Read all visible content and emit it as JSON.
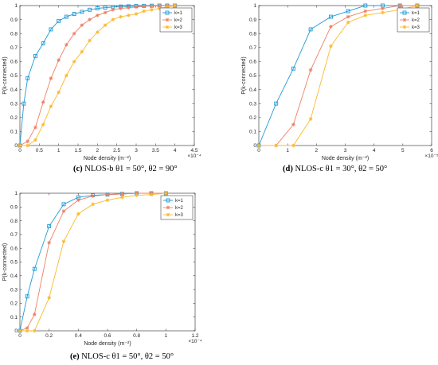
{
  "captions": [
    {
      "label": "(c)",
      "text": "NLOS-b θ1 = 50°, θ2 = 90°"
    },
    {
      "label": "(d)",
      "text": "NLOS-c θ1 = 30°, θ2 = 50°"
    },
    {
      "label": "(e)",
      "text": "NLOS-c θ1 = 50°, θ2 = 50°"
    }
  ],
  "colors": {
    "k1": "#1f9bd6",
    "k2": "#f07f63",
    "k3": "#fbb92b"
  },
  "chart_data": [
    {
      "type": "line",
      "xlabel": "Node density (m⁻²)",
      "ylabel": "P(k-connected)",
      "x_exponent": "×10⁻⁴",
      "xlim": [
        0,
        4.5
      ],
      "ylim": [
        0,
        1
      ],
      "xticks": [
        "0",
        "0.5",
        "1",
        "1.5",
        "2",
        "2.5",
        "3",
        "3.5",
        "4",
        "4.5"
      ],
      "yticks": [
        "0",
        "0.1",
        "0.2",
        "0.3",
        "0.4",
        "0.5",
        "0.6",
        "0.7",
        "0.8",
        "0.9",
        "1"
      ],
      "legend_position": "top-right",
      "series": [
        {
          "name": "k=1",
          "color": "#1f9bd6",
          "marker": "square",
          "x": [
            0,
            0.1,
            0.2,
            0.4,
            0.6,
            0.8,
            1.0,
            1.2,
            1.4,
            1.6,
            1.8,
            2.0,
            2.2,
            2.4,
            2.6,
            2.8,
            3.0,
            3.2,
            3.4,
            3.6,
            3.8,
            4.0
          ],
          "y": [
            0,
            0.3,
            0.48,
            0.64,
            0.73,
            0.83,
            0.89,
            0.92,
            0.94,
            0.955,
            0.97,
            0.98,
            0.985,
            0.99,
            0.993,
            0.995,
            0.997,
            0.998,
            0.999,
            1,
            1,
            1
          ]
        },
        {
          "name": "k=2",
          "color": "#f07f63",
          "marker": "star",
          "x": [
            0,
            0.2,
            0.4,
            0.6,
            0.8,
            1.0,
            1.2,
            1.4,
            1.6,
            1.8,
            2.0,
            2.2,
            2.4,
            2.6,
            2.8,
            3.0,
            3.2,
            3.4,
            3.6,
            3.8,
            4.0
          ],
          "y": [
            0,
            0.03,
            0.13,
            0.31,
            0.48,
            0.61,
            0.72,
            0.8,
            0.86,
            0.9,
            0.93,
            0.95,
            0.97,
            0.98,
            0.985,
            0.99,
            0.995,
            0.997,
            0.998,
            0.999,
            1
          ]
        },
        {
          "name": "k=3",
          "color": "#fbb92b",
          "marker": "star",
          "x": [
            0,
            0.2,
            0.4,
            0.6,
            0.8,
            1.0,
            1.2,
            1.4,
            1.6,
            1.8,
            2.0,
            2.2,
            2.4,
            2.6,
            2.8,
            3.0,
            3.2,
            3.4,
            3.6,
            3.8,
            4.0
          ],
          "y": [
            0,
            0,
            0.04,
            0.15,
            0.28,
            0.38,
            0.5,
            0.6,
            0.67,
            0.75,
            0.81,
            0.86,
            0.9,
            0.92,
            0.93,
            0.94,
            0.96,
            0.97,
            0.98,
            0.99,
            1
          ]
        }
      ]
    },
    {
      "type": "line",
      "xlabel": "Node density (m⁻²)",
      "ylabel": "P(k-connected)",
      "x_exponent": "×10⁻⁵",
      "xlim": [
        0,
        6
      ],
      "ylim": [
        0,
        1
      ],
      "xticks": [
        "0",
        "1",
        "2",
        "3",
        "4",
        "5",
        "6"
      ],
      "yticks": [
        "0",
        "0.1",
        "0.2",
        "0.3",
        "0.4",
        "0.5",
        "0.6",
        "0.7",
        "0.8",
        "0.9",
        "1"
      ],
      "legend_position": "top-right",
      "series": [
        {
          "name": "k=1",
          "color": "#1f9bd6",
          "marker": "square",
          "x": [
            0,
            0.6,
            1.2,
            1.8,
            2.5,
            3.1,
            3.7,
            4.3,
            4.9,
            5.5
          ],
          "y": [
            0,
            0.3,
            0.55,
            0.83,
            0.92,
            0.96,
            1,
            1,
            1,
            1
          ]
        },
        {
          "name": "k=2",
          "color": "#f07f63",
          "marker": "star",
          "x": [
            0,
            0.6,
            1.2,
            1.8,
            2.5,
            3.1,
            3.7,
            4.3,
            4.9,
            5.5
          ],
          "y": [
            0,
            0,
            0.15,
            0.54,
            0.85,
            0.92,
            0.96,
            0.98,
            1,
            1
          ]
        },
        {
          "name": "k=3",
          "color": "#fbb92b",
          "marker": "star",
          "x": [
            0,
            0.6,
            1.2,
            1.8,
            2.5,
            3.1,
            3.7,
            4.3,
            4.9,
            5.5
          ],
          "y": [
            0,
            0,
            0,
            0.19,
            0.71,
            0.88,
            0.93,
            0.95,
            0.97,
            1
          ]
        }
      ]
    },
    {
      "type": "line",
      "xlabel": "Node density (m⁻²)",
      "ylabel": "P(k-connected)",
      "x_exponent": "×10⁻⁴",
      "xlim": [
        0,
        1.2
      ],
      "ylim": [
        0,
        1
      ],
      "xticks": [
        "0",
        "0.2",
        "0.4",
        "0.6",
        "0.8",
        "1",
        "1.2"
      ],
      "yticks": [
        "0",
        "0.1",
        "0.2",
        "0.3",
        "0.4",
        "0.5",
        "0.6",
        "0.7",
        "0.8",
        "0.9",
        "1"
      ],
      "legend_position": "top-right",
      "series": [
        {
          "name": "k=1",
          "color": "#1f9bd6",
          "marker": "square",
          "x": [
            0,
            0.05,
            0.1,
            0.2,
            0.3,
            0.4,
            0.5,
            0.6,
            0.7,
            0.8,
            0.9,
            1.0
          ],
          "y": [
            0,
            0.25,
            0.45,
            0.76,
            0.92,
            0.97,
            0.985,
            0.99,
            0.995,
            1,
            1,
            1
          ]
        },
        {
          "name": "k=2",
          "color": "#f07f63",
          "marker": "star",
          "x": [
            0,
            0.05,
            0.1,
            0.2,
            0.3,
            0.4,
            0.5,
            0.6,
            0.7,
            0.8,
            0.9,
            1.0
          ],
          "y": [
            0,
            0.02,
            0.12,
            0.64,
            0.87,
            0.95,
            0.98,
            0.99,
            0.995,
            1,
            1,
            1
          ]
        },
        {
          "name": "k=3",
          "color": "#fbb92b",
          "marker": "star",
          "x": [
            0,
            0.05,
            0.1,
            0.2,
            0.3,
            0.4,
            0.5,
            0.6,
            0.7,
            0.8,
            0.9,
            1.0
          ],
          "y": [
            0,
            0,
            0,
            0.24,
            0.65,
            0.85,
            0.92,
            0.95,
            0.97,
            0.985,
            0.99,
            1
          ]
        }
      ]
    }
  ]
}
